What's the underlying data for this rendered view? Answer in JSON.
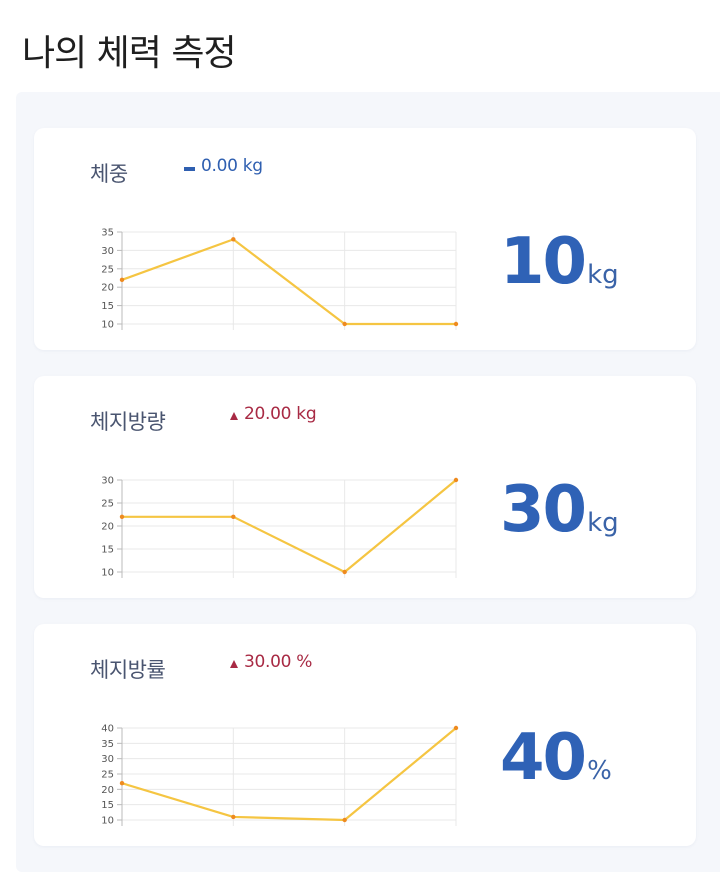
{
  "page_title": "나의 체력 측정",
  "colors": {
    "accent": "#2f62b6",
    "up": "#a82a44",
    "flat": "#2f5fb0",
    "line": "#f5c542",
    "point": "#ee8a1f"
  },
  "cards": [
    {
      "title": "체중",
      "change_icon": "dash-icon",
      "change_text": "0.00 kg",
      "change_type": "flat",
      "value": "10",
      "unit": "kg"
    },
    {
      "title": "체지방량",
      "change_icon": "triangle-up-icon",
      "change_text": "20.00 kg",
      "change_type": "up",
      "value": "30",
      "unit": "kg"
    },
    {
      "title": "체지방률",
      "change_icon": "triangle-up-icon",
      "change_text": "30.00 %",
      "change_type": "up",
      "value": "40",
      "unit": "%"
    }
  ],
  "chart_data": [
    {
      "type": "line",
      "x": [
        1,
        2,
        3,
        4
      ],
      "values": [
        22,
        33,
        10,
        10
      ],
      "ylim": [
        10,
        35
      ],
      "yticks": [
        10,
        15,
        20,
        25,
        30,
        35
      ],
      "grid": true
    },
    {
      "type": "line",
      "x": [
        1,
        2,
        3,
        4
      ],
      "values": [
        22,
        22,
        10,
        30
      ],
      "ylim": [
        10,
        30
      ],
      "yticks": [
        10,
        15,
        20,
        25,
        30
      ],
      "grid": true
    },
    {
      "type": "line",
      "x": [
        1,
        2,
        3,
        4
      ],
      "values": [
        22,
        11,
        10,
        40
      ],
      "ylim": [
        10,
        40
      ],
      "yticks": [
        10,
        15,
        20,
        25,
        30,
        35,
        40
      ],
      "grid": true
    }
  ]
}
